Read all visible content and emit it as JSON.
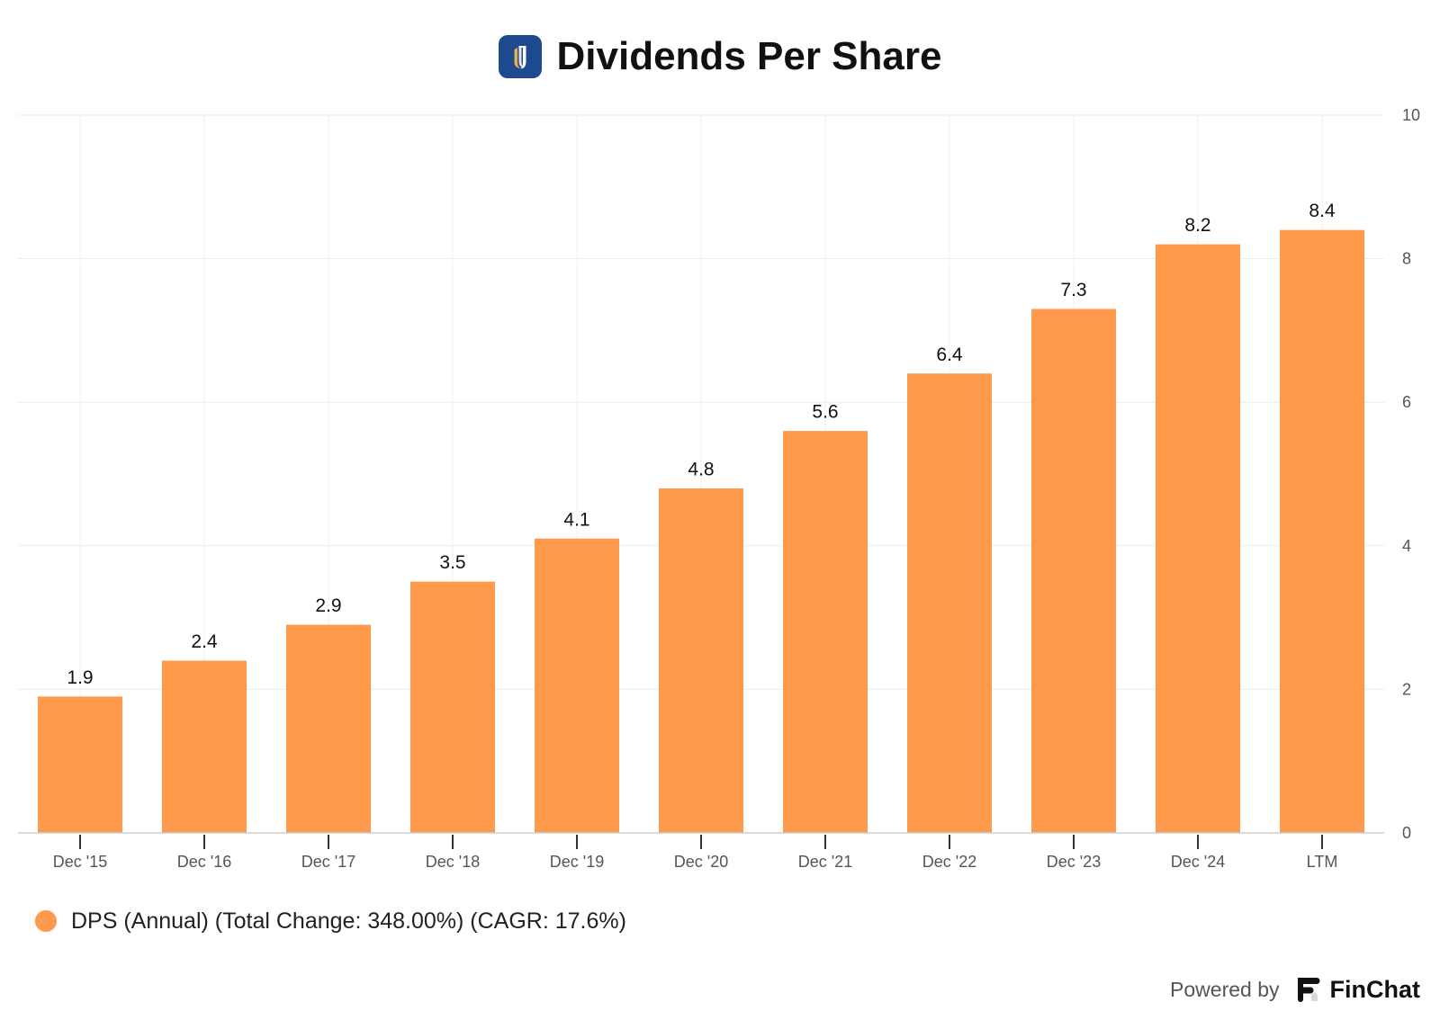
{
  "header": {
    "logo_icon": "company-logo-icon"
  },
  "chart_data": {
    "type": "bar",
    "title": "Dividends Per Share",
    "categories": [
      "Dec '15",
      "Dec '16",
      "Dec '17",
      "Dec '18",
      "Dec '19",
      "Dec '20",
      "Dec '21",
      "Dec '22",
      "Dec '23",
      "Dec '24",
      "LTM"
    ],
    "series": [
      {
        "name": "DPS (Annual) (Total Change: 348.00%) (CAGR: 17.6%)",
        "values": [
          1.9,
          2.4,
          2.9,
          3.5,
          4.1,
          4.8,
          5.6,
          6.4,
          7.3,
          8.2,
          8.4
        ],
        "color": "#FF994C"
      }
    ],
    "ylim": [
      0,
      10
    ],
    "yticks": [
      0,
      2,
      4,
      6,
      8,
      10
    ],
    "y_axis_side": "right",
    "grid": true,
    "data_labels_shown": true,
    "legend_position": "bottom-left"
  },
  "footer": {
    "powered_by": "Powered by",
    "brand": "FinChat",
    "brand_icon": "finchat-logo-icon"
  },
  "colors": {
    "logo_background": "#1D4A8F",
    "logo_accent": "#E9B143",
    "brand_mark": "#111111"
  }
}
